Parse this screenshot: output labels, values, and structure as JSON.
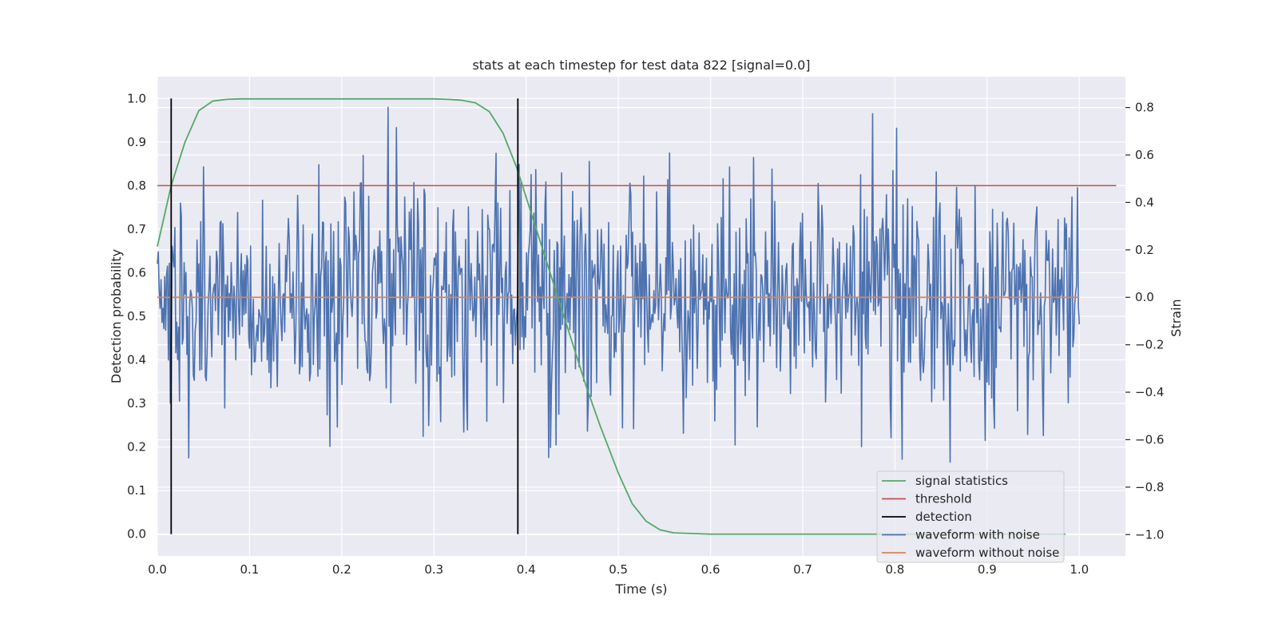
{
  "chart_data": {
    "type": "line",
    "title": "stats at each timestep for test data 822 [signal=0.0]",
    "xlabel": "Time (s)",
    "ylabel": "Detection probability",
    "ylabel_right": "Strain",
    "xlim": [
      0.0,
      1.05
    ],
    "ylim": [
      -0.05,
      1.05
    ],
    "ylim_right": [
      -1.09,
      0.93
    ],
    "x_ticks": [
      "0.0",
      "0.1",
      "0.2",
      "0.3",
      "0.4",
      "0.5",
      "0.6",
      "0.7",
      "0.8",
      "0.9",
      "1.0"
    ],
    "y_ticks": [
      "0.0",
      "0.1",
      "0.2",
      "0.3",
      "0.4",
      "0.5",
      "0.6",
      "0.7",
      "0.8",
      "0.9",
      "1.0"
    ],
    "y_ticks_right": [
      "−1.0",
      "−0.8",
      "−0.6",
      "−0.4",
      "−0.2",
      "0.0",
      "0.2",
      "0.4",
      "0.6",
      "0.8"
    ],
    "grid": true,
    "legend_position": "lower-right",
    "series": [
      {
        "name": "signal statistics",
        "axis": "left",
        "color": "#55a868",
        "x": [
          0.0,
          0.015,
          0.03,
          0.045,
          0.06,
          0.075,
          0.09,
          0.105,
          0.12,
          0.135,
          0.15,
          0.165,
          0.18,
          0.195,
          0.21,
          0.225,
          0.24,
          0.255,
          0.27,
          0.285,
          0.3,
          0.315,
          0.33,
          0.345,
          0.36,
          0.375,
          0.39,
          0.405,
          0.42,
          0.435,
          0.45,
          0.465,
          0.48,
          0.5,
          0.515,
          0.53,
          0.545,
          0.56,
          0.6,
          0.7,
          0.8,
          0.9,
          0.985
        ],
        "values": [
          0.66,
          0.8,
          0.9,
          0.972,
          0.994,
          0.998,
          0.999,
          0.999,
          0.999,
          0.999,
          0.999,
          0.999,
          0.999,
          0.999,
          0.999,
          0.999,
          0.999,
          0.999,
          0.999,
          0.999,
          0.999,
          0.998,
          0.996,
          0.99,
          0.97,
          0.92,
          0.84,
          0.74,
          0.64,
          0.54,
          0.44,
          0.34,
          0.25,
          0.14,
          0.07,
          0.03,
          0.01,
          0.003,
          0.0,
          0.0,
          0.0,
          0.0,
          0.0
        ]
      },
      {
        "name": "threshold",
        "axis": "left",
        "color": "#c44e52",
        "x": [
          0.0,
          1.04
        ],
        "values": [
          0.8,
          0.8
        ]
      },
      {
        "name": "detection",
        "axis": "left",
        "color": "#000000",
        "events": [
          0.015,
          0.391
        ],
        "range": [
          0.0,
          1.0
        ]
      },
      {
        "name": "waveform with noise",
        "axis": "right",
        "color": "#4c72b0",
        "x_range": [
          0.0,
          1.0
        ],
        "n_points": 1000,
        "std": 0.25
      },
      {
        "name": "waveform without noise",
        "axis": "right",
        "color": "#dd8452",
        "x": [
          0.0,
          1.0
        ],
        "values": [
          0.0,
          0.0
        ]
      }
    ]
  }
}
